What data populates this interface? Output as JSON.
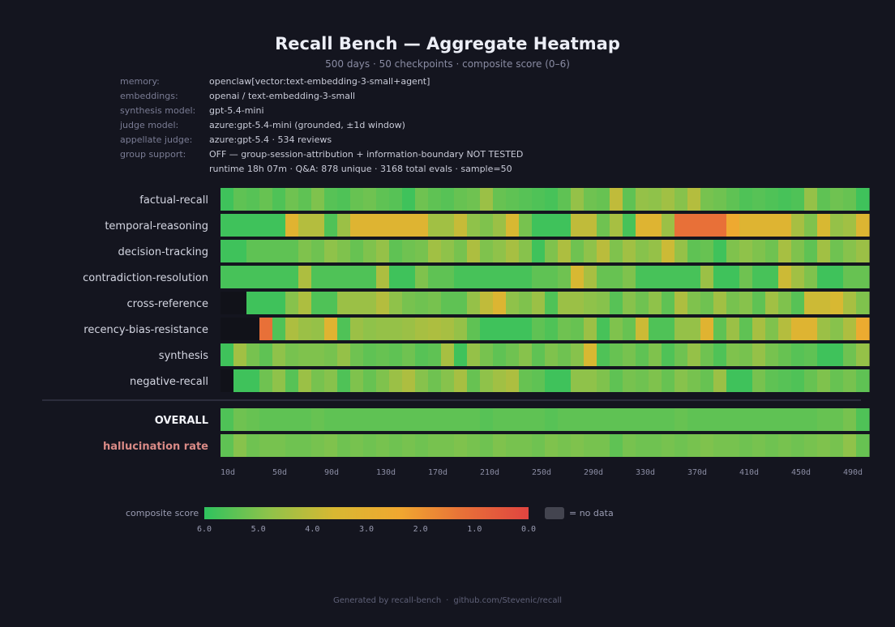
{
  "title": "Recall Bench — Aggregate Heatmap",
  "subtitle": "500 days  ·  50 checkpoints  ·  composite score (0–6)",
  "meta": [
    {
      "key": "memory:",
      "value": "openclaw[vector:text-embedding-3-small+agent]"
    },
    {
      "key": "embeddings:",
      "value": "openai / text-embedding-3-small"
    },
    {
      "key": "synthesis model:",
      "value": "gpt-5.4-mini"
    },
    {
      "key": "judge model:",
      "value": "azure:gpt-5.4-mini  (grounded, ±1d window)"
    },
    {
      "key": "appellate judge:",
      "value": "azure:gpt-5.4  · 534 reviews"
    },
    {
      "key": "group support:",
      "value": "OFF — group-session-attribution + information-boundary NOT TESTED"
    },
    {
      "key": "",
      "value": "runtime 18h 07m  ·  Q&A: 878 unique · 3168 total evals · sample=50"
    }
  ],
  "legend": {
    "title": "composite score",
    "ticks": [
      "6.0",
      "5.0",
      "4.0",
      "3.0",
      "2.0",
      "1.0",
      "0.0"
    ],
    "nodata_label": "= no data",
    "nodata_color": "#43444f",
    "gradient_colors": [
      "#2fc25e",
      "#8fc24a",
      "#d8b832",
      "#f0a830",
      "#e87038",
      "#e04440"
    ]
  },
  "footer": {
    "generator": "Generated by recall-bench",
    "link": "github.com/Stevenic/recall"
  },
  "chart_data": {
    "type": "heatmap",
    "title": "Recall Bench — Aggregate Heatmap",
    "value_range": [
      0,
      6
    ],
    "x": [
      "10d",
      "20d",
      "30d",
      "40d",
      "50d",
      "60d",
      "70d",
      "80d",
      "90d",
      "100d",
      "110d",
      "120d",
      "130d",
      "140d",
      "150d",
      "160d",
      "170d",
      "180d",
      "190d",
      "200d",
      "210d",
      "220d",
      "230d",
      "240d",
      "250d",
      "260d",
      "270d",
      "280d",
      "290d",
      "300d",
      "310d",
      "320d",
      "330d",
      "340d",
      "350d",
      "360d",
      "370d",
      "380d",
      "390d",
      "400d",
      "410d",
      "420d",
      "430d",
      "440d",
      "450d",
      "460d",
      "470d",
      "480d",
      "490d",
      "500d"
    ],
    "x_tick_labels": [
      "10d",
      "50d",
      "90d",
      "130d",
      "170d",
      "210d",
      "250d",
      "290d",
      "330d",
      "370d",
      "410d",
      "450d",
      "490d"
    ],
    "rows": [
      {
        "name": "factual-recall",
        "values": [
          5.8,
          5.4,
          5.5,
          5.3,
          5.6,
          5.2,
          5.4,
          5.0,
          5.5,
          5.6,
          5.3,
          5.2,
          5.4,
          5.5,
          5.8,
          5.2,
          5.4,
          5.5,
          5.3,
          5.2,
          4.6,
          5.3,
          5.4,
          5.5,
          5.6,
          5.7,
          5.4,
          4.7,
          5.2,
          5.3,
          4.0,
          5.4,
          4.7,
          4.8,
          4.5,
          4.9,
          4.2,
          5.1,
          5.2,
          5.4,
          5.6,
          5.5,
          5.6,
          5.7,
          5.6,
          4.7,
          5.4,
          5.2,
          5.3,
          5.8
        ]
      },
      {
        "name": "temporal-reasoning",
        "values": [
          5.8,
          5.8,
          5.8,
          5.8,
          5.8,
          3.2,
          4.2,
          4.2,
          5.6,
          4.6,
          3.3,
          3.3,
          3.3,
          3.3,
          3.3,
          3.3,
          4.5,
          4.5,
          3.9,
          4.8,
          5.0,
          4.6,
          3.6,
          5.1,
          5.8,
          5.8,
          5.8,
          4.0,
          4.0,
          5.2,
          4.4,
          5.7,
          3.3,
          3.3,
          4.6,
          1.2,
          1.2,
          1.2,
          1.2,
          2.5,
          3.3,
          3.3,
          3.3,
          3.3,
          4.4,
          5.0,
          3.6,
          4.7,
          4.5,
          3.4
        ]
      },
      {
        "name": "decision-tracking",
        "values": [
          5.8,
          5.8,
          5.4,
          5.4,
          5.4,
          5.4,
          5.0,
          5.2,
          4.8,
          5.0,
          5.3,
          5.0,
          4.7,
          5.4,
          5.2,
          5.1,
          4.5,
          4.8,
          5.1,
          4.3,
          5.0,
          4.8,
          4.4,
          4.9,
          5.8,
          5.0,
          4.3,
          5.2,
          4.8,
          4.1,
          5.0,
          4.5,
          4.9,
          4.7,
          3.8,
          4.7,
          5.4,
          5.3,
          5.8,
          5.0,
          4.8,
          5.0,
          5.2,
          4.4,
          5.0,
          5.4,
          4.5,
          5.2,
          4.9,
          4.6
        ]
      },
      {
        "name": "contradiction-resolution",
        "values": [
          5.7,
          5.7,
          5.7,
          5.7,
          5.7,
          5.7,
          4.3,
          5.6,
          5.6,
          5.6,
          5.6,
          5.6,
          4.3,
          5.8,
          5.8,
          5.0,
          5.4,
          5.4,
          5.7,
          5.7,
          5.7,
          5.7,
          5.7,
          5.7,
          5.4,
          5.4,
          5.2,
          3.6,
          4.4,
          5.3,
          5.3,
          5.0,
          5.7,
          5.7,
          5.7,
          5.7,
          5.7,
          4.6,
          5.8,
          5.8,
          5.2,
          5.7,
          5.7,
          3.8,
          4.5,
          5.0,
          5.8,
          5.8,
          5.3,
          5.3
        ]
      },
      {
        "name": "cross-reference",
        "values": [
          null,
          null,
          5.8,
          5.8,
          5.8,
          4.9,
          4.3,
          5.6,
          5.6,
          4.6,
          4.6,
          4.6,
          4.2,
          4.8,
          5.1,
          5.2,
          5.1,
          5.4,
          5.4,
          4.7,
          4.0,
          3.4,
          4.8,
          5.0,
          4.6,
          5.6,
          4.6,
          4.6,
          4.8,
          4.9,
          5.5,
          4.9,
          5.2,
          4.8,
          5.4,
          4.3,
          5.0,
          5.2,
          4.5,
          5.1,
          4.9,
          5.4,
          4.5,
          5.0,
          5.5,
          3.8,
          3.8,
          3.6,
          4.4,
          5.0
        ]
      },
      {
        "name": "recency-bias-resistance",
        "values": [
          null,
          null,
          null,
          1.2,
          5.6,
          4.3,
          4.6,
          4.7,
          3.2,
          5.6,
          4.6,
          4.8,
          4.7,
          4.7,
          4.6,
          4.4,
          4.3,
          4.4,
          4.7,
          5.4,
          5.8,
          5.8,
          5.8,
          5.8,
          5.4,
          5.6,
          5.2,
          5.3,
          4.6,
          5.7,
          5.0,
          5.3,
          3.8,
          5.6,
          5.6,
          4.7,
          4.7,
          3.2,
          5.4,
          4.6,
          5.4,
          4.4,
          5.0,
          4.2,
          3.3,
          3.3,
          4.6,
          4.9,
          4.3,
          2.6
        ]
      },
      {
        "name": "synthesis",
        "values": [
          5.8,
          4.5,
          5.1,
          5.4,
          4.8,
          5.1,
          5.0,
          5.0,
          5.1,
          4.7,
          5.2,
          5.4,
          5.3,
          5.4,
          5.2,
          5.5,
          5.4,
          4.4,
          5.8,
          4.7,
          5.1,
          5.4,
          5.2,
          4.9,
          5.4,
          5.0,
          5.2,
          4.9,
          3.6,
          5.6,
          5.3,
          5.1,
          5.4,
          5.0,
          5.6,
          5.2,
          4.7,
          5.2,
          5.6,
          5.0,
          5.1,
          4.7,
          5.1,
          5.3,
          5.5,
          5.4,
          5.8,
          5.8,
          5.2,
          4.7
        ]
      },
      {
        "name": "negative-recall",
        "values": [
          null,
          5.8,
          5.8,
          5.2,
          4.8,
          5.5,
          4.6,
          5.1,
          4.9,
          5.6,
          5.0,
          5.3,
          5.0,
          4.6,
          4.3,
          4.9,
          5.2,
          4.9,
          4.4,
          5.3,
          4.8,
          4.5,
          4.3,
          5.3,
          5.4,
          5.8,
          5.8,
          4.8,
          4.8,
          5.0,
          5.4,
          5.1,
          5.2,
          5.0,
          5.3,
          4.9,
          5.1,
          5.3,
          4.6,
          5.8,
          5.8,
          5.1,
          5.4,
          5.5,
          5.6,
          5.3,
          5.0,
          5.3,
          5.1,
          5.4
        ]
      }
    ],
    "summary_rows": [
      {
        "name": "OVERALL",
        "values": [
          5.6,
          5.2,
          5.3,
          5.4,
          5.4,
          5.4,
          5.4,
          5.3,
          5.4,
          5.4,
          5.4,
          5.4,
          5.4,
          5.4,
          5.4,
          5.4,
          5.4,
          5.4,
          5.4,
          5.4,
          5.5,
          5.4,
          5.4,
          5.4,
          5.4,
          5.5,
          5.4,
          5.4,
          5.4,
          5.4,
          5.4,
          5.4,
          5.4,
          5.4,
          5.4,
          5.3,
          5.4,
          5.4,
          5.4,
          5.4,
          5.4,
          5.4,
          5.4,
          5.4,
          5.4,
          5.4,
          5.3,
          5.3,
          5.1,
          5.6
        ]
      },
      {
        "name": "hallucination rate",
        "values": [
          5.4,
          4.9,
          5.2,
          5.1,
          5.1,
          5.2,
          5.2,
          5.1,
          5.0,
          5.2,
          5.1,
          5.2,
          5.1,
          5.2,
          5.1,
          5.2,
          5.1,
          5.1,
          5.0,
          5.1,
          5.2,
          5.0,
          5.1,
          5.1,
          5.2,
          5.0,
          5.1,
          5.0,
          5.1,
          5.1,
          5.4,
          5.1,
          5.2,
          5.2,
          5.1,
          5.2,
          5.1,
          5.0,
          5.1,
          5.1,
          5.2,
          5.1,
          5.2,
          5.1,
          5.2,
          5.1,
          5.0,
          5.1,
          4.8,
          5.3
        ]
      }
    ]
  }
}
